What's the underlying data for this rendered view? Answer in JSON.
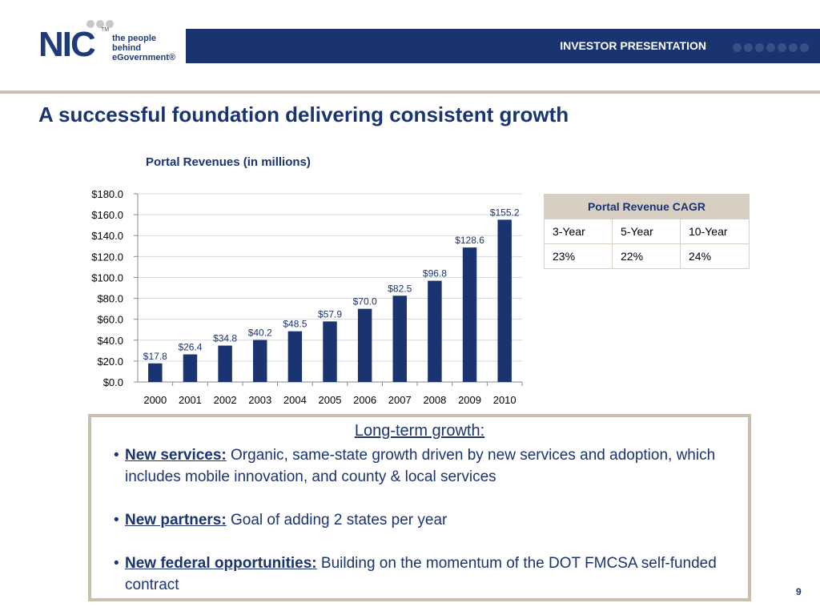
{
  "header": {
    "logo_text": "NIC",
    "logo_tm": "TM",
    "logo_tagline": [
      "the people",
      "behind",
      "eGovernment®"
    ],
    "banner_title": "INVESTOR PRESENTATION"
  },
  "slide": {
    "title": "A successful foundation delivering consistent growth",
    "page_number": "9"
  },
  "chart_data": {
    "type": "bar",
    "title": "Portal Revenues (in millions)",
    "categories": [
      "2000",
      "2001",
      "2002",
      "2003",
      "2004",
      "2005",
      "2006",
      "2007",
      "2008",
      "2009",
      "2010"
    ],
    "values": [
      17.8,
      26.4,
      34.8,
      40.2,
      48.5,
      57.9,
      70.0,
      82.5,
      96.8,
      128.6,
      155.2
    ],
    "data_labels": [
      "$17.8",
      "$26.4",
      "$34.8",
      "$40.2",
      "$48.5",
      "$57.9",
      "$70.0",
      "$82.5",
      "$96.8",
      "$128.6",
      "$155.2"
    ],
    "y_ticks": [
      0,
      20,
      40,
      60,
      80,
      100,
      120,
      140,
      160,
      180
    ],
    "y_tick_labels": [
      "$0.0",
      "$20.0",
      "$40.0",
      "$60.0",
      "$80.0",
      "$100.0",
      "$120.0",
      "$140.0",
      "$160.0",
      "$180.0"
    ],
    "ylim": [
      0,
      180
    ],
    "xlabel": "",
    "ylabel": "",
    "grid": true,
    "bar_color": "#1a3371"
  },
  "cagr_table": {
    "title": "Portal Revenue CAGR",
    "headers": [
      "3-Year",
      "5-Year",
      "10-Year"
    ],
    "values": [
      "23%",
      "22%",
      "24%"
    ]
  },
  "growth": {
    "heading": "Long-term growth:",
    "bullets": [
      {
        "label": "New services:",
        "text": "Organic, same-state growth driven by new services and adoption, which includes mobile innovation, and county & local services"
      },
      {
        "label": "New partners:",
        "text": "Goal of adding 2 states per year"
      },
      {
        "label": "New federal opportunities:",
        "text": "Building on the momentum of the DOT FMCSA self-funded contract"
      }
    ]
  },
  "colors": {
    "brand_navy": "#1a3371",
    "accent_tan": "#c9bfae"
  }
}
